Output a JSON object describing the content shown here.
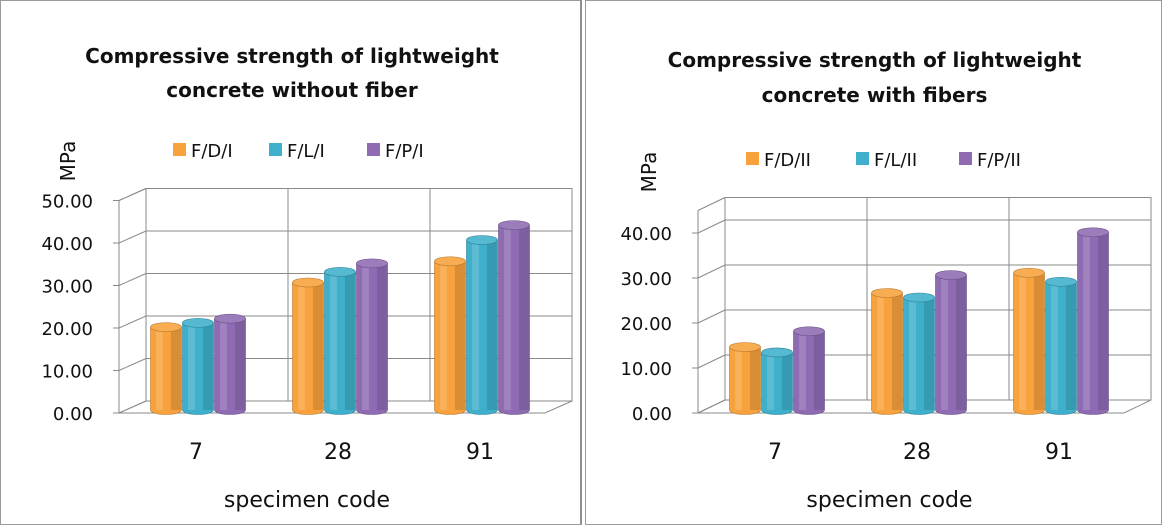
{
  "chart_data": [
    {
      "type": "bar",
      "title_lines": [
        "Compressive strength of lightweight",
        "concrete without fiber"
      ],
      "xlabel": "specimen code",
      "ylabel": "MPa",
      "categories": [
        "7",
        "28",
        "91"
      ],
      "ylim": [
        0,
        50
      ],
      "yticks": [
        "0.00",
        "10.00",
        "20.00",
        "30.00",
        "40.00",
        "50.00"
      ],
      "legend_position": "top",
      "grid": true,
      "series": [
        {
          "name": "F/D/I",
          "color": "#f7a23c",
          "values": [
            19.5,
            30.0,
            35.0
          ]
        },
        {
          "name": "F/L/I",
          "color": "#3fb0cc",
          "values": [
            20.5,
            32.5,
            40.0
          ]
        },
        {
          "name": "F/P/I",
          "color": "#8f6bb3",
          "values": [
            21.5,
            34.5,
            43.5
          ]
        }
      ]
    },
    {
      "type": "bar",
      "title_lines": [
        "Compressive strength of lightweight",
        "concrete with fibers"
      ],
      "xlabel": "specimen code",
      "ylabel": "MPa",
      "categories": [
        "7",
        "28",
        "91"
      ],
      "ylim": [
        0,
        45
      ],
      "yticks": [
        "0.00",
        "10.00",
        "20.00",
        "30.00",
        "40.00"
      ],
      "legend_position": "top",
      "grid": true,
      "series": [
        {
          "name": "F/D/II",
          "color": "#f7a23c",
          "values": [
            14.0,
            26.0,
            30.5
          ]
        },
        {
          "name": "F/L/II",
          "color": "#3fb0cc",
          "values": [
            12.8,
            25.0,
            28.5
          ]
        },
        {
          "name": "F/P/II",
          "color": "#8f6bb3",
          "values": [
            17.5,
            30.0,
            39.5
          ]
        }
      ]
    }
  ]
}
